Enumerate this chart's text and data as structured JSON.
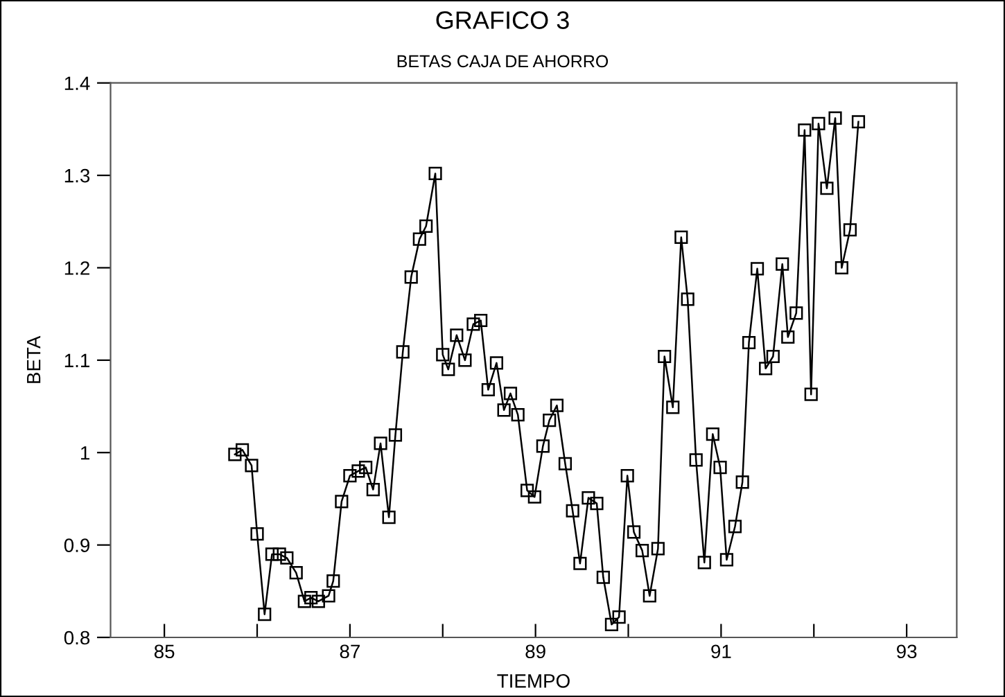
{
  "chart_data": {
    "type": "line",
    "title": "GRAFICO 3",
    "subtitle": "BETAS CAJA DE AHORRO",
    "xlabel": "TIEMPO",
    "ylabel": "BETA",
    "x": [
      85.76,
      85.84,
      85.94,
      86.0,
      86.08,
      86.16,
      86.24,
      86.32,
      86.42,
      86.51,
      86.58,
      86.66,
      86.77,
      86.82,
      86.91,
      87.0,
      87.09,
      87.17,
      87.25,
      87.33,
      87.42,
      87.49,
      87.57,
      87.66,
      87.75,
      87.82,
      87.92,
      88.0,
      88.06,
      88.15,
      88.24,
      88.33,
      88.41,
      88.49,
      88.58,
      88.66,
      88.73,
      88.81,
      88.91,
      88.99,
      89.08,
      89.15,
      89.23,
      89.32,
      89.4,
      89.48,
      89.57,
      89.66,
      89.73,
      89.82,
      89.9,
      89.99,
      90.06,
      90.15,
      90.23,
      90.32,
      90.39,
      90.48,
      90.57,
      90.64,
      90.73,
      90.82,
      90.91,
      90.99,
      91.06,
      91.15,
      91.23,
      91.3,
      91.39,
      91.48,
      91.56,
      91.66,
      91.72,
      91.81,
      91.9,
      91.97,
      92.05,
      92.14,
      92.23,
      92.3,
      92.39,
      92.48
    ],
    "series": [
      {
        "color": "#000000",
        "values": [
          0.998,
          1.003,
          0.986,
          0.912,
          0.825,
          0.89,
          0.89,
          0.886,
          0.87,
          0.839,
          0.843,
          0.839,
          0.845,
          0.861,
          0.947,
          0.975,
          0.98,
          0.984,
          0.96,
          1.01,
          0.93,
          1.019,
          1.109,
          1.19,
          1.231,
          1.245,
          1.302,
          1.106,
          1.09,
          1.127,
          1.1,
          1.139,
          1.143,
          1.068,
          1.097,
          1.046,
          1.064,
          1.041,
          0.959,
          0.952,
          1.007,
          1.035,
          1.051,
          0.988,
          0.937,
          0.88,
          0.951,
          0.945,
          0.865,
          0.814,
          0.822,
          0.975,
          0.914,
          0.894,
          0.845,
          0.896,
          1.104,
          1.049,
          1.233,
          1.166,
          0.992,
          0.881,
          1.02,
          0.984,
          0.884,
          0.92,
          0.968,
          1.119,
          1.199,
          1.091,
          1.104,
          1.204,
          1.125,
          1.151,
          1.349,
          1.063,
          1.356,
          1.286,
          1.362,
          1.2,
          1.241,
          1.358
        ]
      }
    ],
    "xlim": [
      84.42,
      93.54
    ],
    "ylim": [
      0.8,
      1.4
    ],
    "xticks": [
      85,
      {
        "value": 86,
        "label": null
      },
      87,
      {
        "value": 88,
        "label": null
      },
      89,
      {
        "value": 90,
        "label": null
      },
      91,
      {
        "value": 92,
        "label": null
      },
      93
    ],
    "yticks": [
      0.8,
      0.9,
      1,
      1.1,
      1.2,
      1.3,
      1.4
    ],
    "marker": "square",
    "line_style": "solid",
    "grid": false,
    "legend": false
  }
}
